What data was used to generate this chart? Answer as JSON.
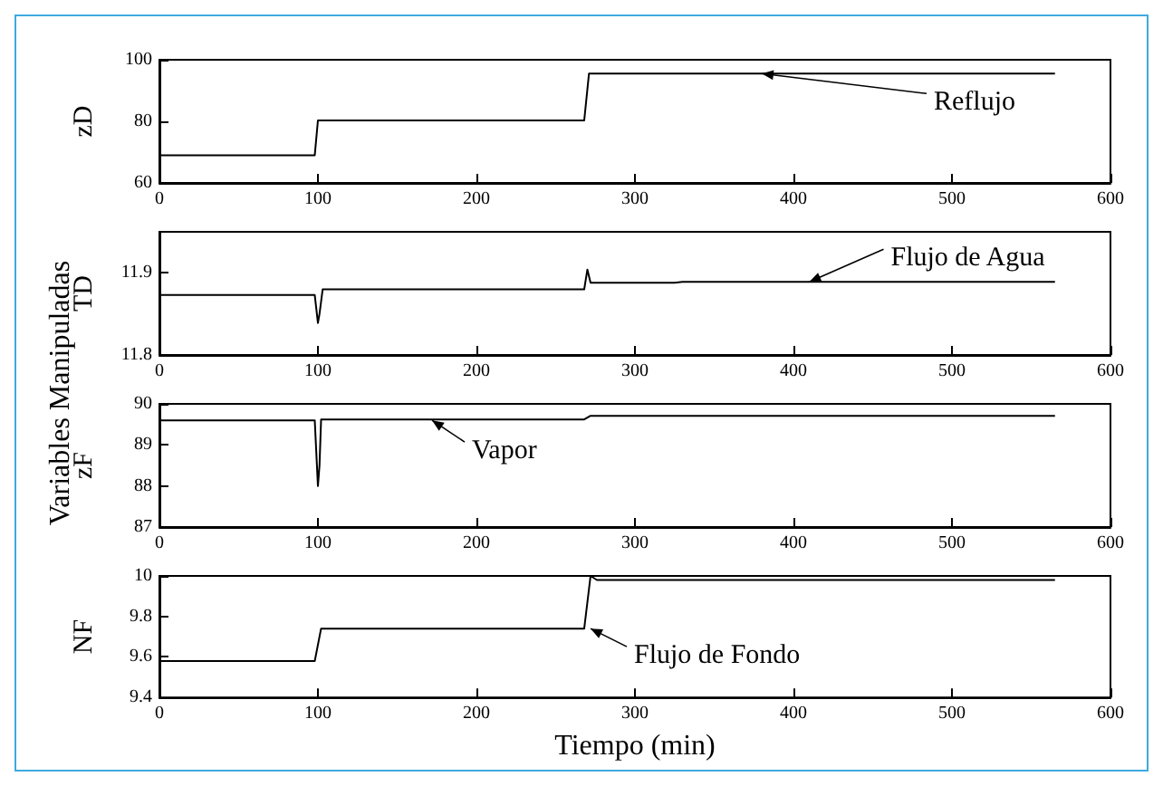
{
  "chart_data": [
    {
      "type": "line",
      "ylabel": "zD",
      "xlim": [
        0,
        600
      ],
      "xticks": [
        0,
        100,
        200,
        300,
        400,
        500,
        600
      ],
      "ylim": [
        60,
        100
      ],
      "yticks": [
        60,
        80,
        100
      ],
      "grid": false,
      "marker": "none",
      "line_style": "solid",
      "series": [
        {
          "color": "#000000",
          "x": [
            0,
            98,
            100,
            268,
            271,
            565
          ],
          "values": [
            69,
            69,
            80.3,
            80.3,
            95.5,
            95.5
          ]
        }
      ],
      "annotations": [
        {
          "text": "Reflujo",
          "x": 380,
          "y": 95.5
        }
      ]
    },
    {
      "type": "line",
      "ylabel": "TD",
      "xlim": [
        0,
        600
      ],
      "xticks": [
        0,
        100,
        200,
        300,
        400,
        500,
        600
      ],
      "ylim": [
        11.8,
        11.95
      ],
      "yticks": [
        11.8,
        11.9
      ],
      "grid": false,
      "marker": "none",
      "line_style": "solid",
      "series": [
        {
          "color": "#000000",
          "x": [
            0,
            98,
            100,
            101,
            103,
            268,
            270,
            272,
            275,
            325,
            330,
            565
          ],
          "values": [
            11.873,
            11.873,
            11.839,
            11.85,
            11.88,
            11.88,
            11.904,
            11.888,
            11.888,
            11.888,
            11.889,
            11.889
          ]
        }
      ],
      "annotations": [
        {
          "text": "Flujo de Agua",
          "x": 410,
          "y": 11.889
        },
        "Variables Manipuladas"
      ]
    },
    {
      "type": "line",
      "ylabel": "zF",
      "xlim": [
        0,
        600
      ],
      "xticks": [
        0,
        100,
        200,
        300,
        400,
        500,
        600
      ],
      "ylim": [
        87,
        90
      ],
      "yticks": [
        87,
        88,
        89,
        90
      ],
      "grid": false,
      "marker": "none",
      "line_style": "solid",
      "series": [
        {
          "color": "#000000",
          "x": [
            0,
            98,
            100,
            101,
            102,
            268,
            272,
            565
          ],
          "values": [
            89.6,
            89.6,
            88.0,
            88.5,
            89.62,
            89.62,
            89.71,
            89.71
          ]
        }
      ],
      "annotations": [
        {
          "text": "Vapor",
          "x": 172,
          "y": 89.6
        }
      ]
    },
    {
      "type": "line",
      "ylabel": "NF",
      "xlabel": "Tiempo (min)",
      "xlim": [
        0,
        600
      ],
      "xticks": [
        0,
        100,
        200,
        300,
        400,
        500,
        600
      ],
      "ylim": [
        9.4,
        10
      ],
      "yticks": [
        9.4,
        9.6,
        9.8,
        10
      ],
      "grid": false,
      "marker": "none",
      "line_style": "solid",
      "series": [
        {
          "color": "#000000",
          "x": [
            0,
            98,
            102,
            268,
            272,
            276,
            565
          ],
          "values": [
            9.58,
            9.58,
            9.74,
            9.74,
            10.0,
            9.98,
            9.98
          ]
        }
      ],
      "annotations": [
        {
          "text": "Flujo de Fondo",
          "x": 272,
          "y": 9.74
        }
      ]
    }
  ]
}
